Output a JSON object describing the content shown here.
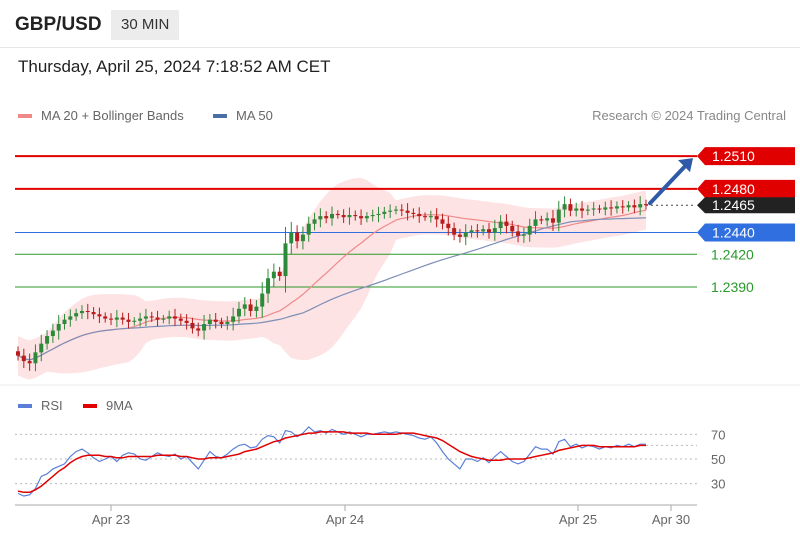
{
  "header": {
    "pair": "GBP/USD",
    "timeframe": "30 MIN"
  },
  "timestamp": "Thursday, April 25, 2024 7:18:52 AM CET",
  "legend": {
    "ma20": {
      "label": "MA 20 + Bollinger Bands",
      "color": "#f08a8a"
    },
    "ma50": {
      "label": "MA 50",
      "color": "#4a6fa5"
    }
  },
  "copyright": "Research © 2024 Trading Central",
  "rsi_legend": {
    "rsi": {
      "label": "RSI",
      "color": "#5b7fd8"
    },
    "ma9": {
      "label": "9MA",
      "color": "#e00000"
    }
  },
  "chart_data": [
    {
      "type": "candlestick",
      "title": "",
      "ylim": [
        1.2312,
        1.2534
      ],
      "x_ticks": [
        "Apr 23",
        "Apr 24",
        "Apr 25",
        "Apr 30"
      ],
      "levels": [
        {
          "value": 1.251,
          "label": "1.2510",
          "color": "#e00000",
          "style": "resistance"
        },
        {
          "value": 1.248,
          "label": "1.2480",
          "color": "#e00000",
          "style": "resistance"
        },
        {
          "value": 1.2465,
          "label": "1.2465",
          "color": "#222222",
          "style": "current"
        },
        {
          "value": 1.244,
          "label": "1.2440",
          "color": "#2f6fe0",
          "style": "pivot"
        },
        {
          "value": 1.242,
          "label": "1.2420",
          "color": "#2a9a2a",
          "style": "support"
        },
        {
          "value": 1.239,
          "label": "1.2390",
          "color": "#2a9a2a",
          "style": "support"
        }
      ],
      "arrow": {
        "direction": "up",
        "target": 1.251
      },
      "series": [
        {
          "name": "MA 20 + Bollinger Bands",
          "kind": "ma20"
        },
        {
          "name": "MA 50",
          "kind": "ma50"
        }
      ],
      "close": [
        1.2327,
        1.2322,
        1.232,
        1.233,
        1.2338,
        1.2345,
        1.235,
        1.2356,
        1.236,
        1.2363,
        1.2366,
        1.2368,
        1.2367,
        1.2365,
        1.2363,
        1.2361,
        1.236,
        1.2362,
        1.236,
        1.2358,
        1.2359,
        1.2361,
        1.2363,
        1.2362,
        1.236,
        1.2361,
        1.2363,
        1.2361,
        1.2359,
        1.2357,
        1.2352,
        1.235,
        1.2356,
        1.236,
        1.2358,
        1.2356,
        1.2358,
        1.2363,
        1.237,
        1.2374,
        1.2368,
        1.2372,
        1.2384,
        1.2398,
        1.2404,
        1.24,
        1.243,
        1.244,
        1.2432,
        1.2438,
        1.2448,
        1.2452,
        1.2455,
        1.2453,
        1.2457,
        1.2456,
        1.2454,
        1.2456,
        1.2455,
        1.2453,
        1.2455,
        1.2456,
        1.2457,
        1.2459,
        1.246,
        1.2461,
        1.246,
        1.2458,
        1.2457,
        1.2455,
        1.2454,
        1.2455,
        1.2452,
        1.2448,
        1.2444,
        1.2438,
        1.2436,
        1.244,
        1.2442,
        1.2441,
        1.2443,
        1.244,
        1.2444,
        1.245,
        1.2446,
        1.2441,
        1.2437,
        1.2438,
        1.2446,
        1.2452,
        1.2451,
        1.2453,
        1.2449,
        1.2461,
        1.2466,
        1.246,
        1.2462,
        1.246,
        1.2461,
        1.2462,
        1.2461,
        1.2463,
        1.2462,
        1.2464,
        1.2463,
        1.2465,
        1.2463,
        1.2466,
        1.2465
      ]
    },
    {
      "type": "line",
      "title": "",
      "ylim": [
        20,
        80
      ],
      "y_ticks": [
        30,
        50,
        70
      ],
      "reference_lines": [
        30,
        70
      ],
      "series": [
        {
          "name": "RSI",
          "color": "#5b7fd8",
          "values": [
            22,
            20,
            21,
            26,
            36,
            38,
            42,
            44,
            46,
            52,
            56,
            58,
            55,
            51,
            48,
            50,
            52,
            48,
            53,
            55,
            54,
            50,
            49,
            52,
            55,
            53,
            52,
            54,
            50,
            52,
            47,
            42,
            49,
            56,
            52,
            51,
            54,
            58,
            61,
            62,
            59,
            60,
            66,
            69,
            68,
            63,
            73,
            72,
            68,
            71,
            76,
            72,
            73,
            71,
            74,
            72,
            70,
            72,
            70,
            68,
            70,
            70,
            71,
            72,
            71,
            72,
            71,
            70,
            69,
            67,
            66,
            68,
            63,
            56,
            50,
            46,
            42,
            50,
            50,
            48,
            51,
            47,
            52,
            56,
            52,
            48,
            46,
            48,
            54,
            60,
            58,
            58,
            54,
            64,
            66,
            60,
            62,
            59,
            61,
            60,
            58,
            60,
            59,
            61,
            60,
            62,
            60,
            62,
            62
          ]
        },
        {
          "name": "9MA",
          "color": "#e00000",
          "values": [
            24,
            23,
            23,
            25,
            28,
            32,
            36,
            40,
            43,
            47,
            50,
            52,
            53,
            53,
            53,
            52,
            52,
            51,
            51,
            52,
            52,
            52,
            52,
            52,
            53,
            53,
            53,
            53,
            52,
            52,
            51,
            50,
            50,
            51,
            51,
            51,
            52,
            53,
            54,
            56,
            57,
            58,
            60,
            62,
            64,
            65,
            67,
            68,
            69,
            70,
            71,
            71,
            72,
            72,
            72,
            72,
            72,
            71,
            71,
            71,
            71,
            70,
            70,
            70,
            70,
            70,
            71,
            71,
            71,
            70,
            69,
            68,
            67,
            65,
            62,
            59,
            56,
            54,
            52,
            51,
            50,
            49,
            49,
            49,
            50,
            50,
            50,
            50,
            51,
            52,
            53,
            54,
            55,
            57,
            58,
            59,
            60,
            61,
            61,
            61,
            60,
            60,
            60,
            60,
            60,
            60,
            60,
            61,
            61
          ]
        }
      ]
    }
  ]
}
